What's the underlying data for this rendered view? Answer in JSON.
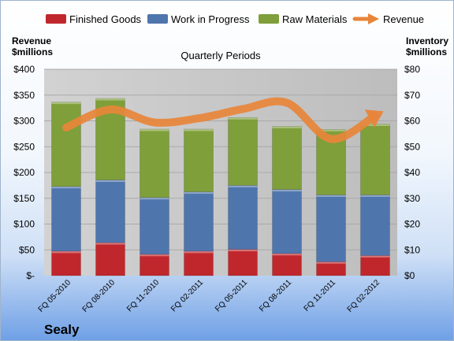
{
  "company": "Sealy",
  "colors": {
    "finished_goods": "#c0272d",
    "work_in_progress": "#4f75ad",
    "raw_materials": "#7e9f3a",
    "revenue": "#e8853a",
    "plot_bg": "#c6c6c6"
  },
  "chart_data": {
    "type": "bar",
    "stacked": true,
    "title": "Quarterly Periods",
    "ylabel_left": "Revenue\n$millions",
    "ylabel_right": "Inventory\n$millions",
    "categories": [
      "FQ 05-2010",
      "FQ 08-2010",
      "FQ 11-2010",
      "FQ 02-2011",
      "FQ 05-2011",
      "FQ 08-2011",
      "FQ 11-2011",
      "FQ 02-2012"
    ],
    "y_left": {
      "min": 0,
      "max": 400,
      "ticks": [
        "$-",
        "$50",
        "$100",
        "$150",
        "$200",
        "$250",
        "$300",
        "$350",
        "$400"
      ]
    },
    "y_right": {
      "min": 0,
      "max": 80,
      "ticks": [
        "$0",
        "$10",
        "$20",
        "$30",
        "$40",
        "$50",
        "$60",
        "$70",
        "$80"
      ]
    },
    "legend_position": "top",
    "series": [
      {
        "name": "Finished Goods",
        "axis": "right",
        "values": [
          9.5,
          12.8,
          8.3,
          9.5,
          10.2,
          8.6,
          5.4,
          7.8
        ]
      },
      {
        "name": "Work in Progress",
        "axis": "right",
        "values": [
          25.1,
          24.3,
          22.0,
          23.0,
          24.8,
          24.8,
          25.9,
          23.5
        ]
      },
      {
        "name": "Raw Materials",
        "axis": "right",
        "values": [
          32.7,
          31.6,
          26.5,
          24.3,
          26.3,
          24.5,
          25.4,
          27.5
        ]
      },
      {
        "name": "Revenue",
        "type": "line",
        "axis": "left",
        "values": [
          287,
          322,
          297,
          305,
          323,
          335,
          265,
          310
        ]
      }
    ]
  }
}
